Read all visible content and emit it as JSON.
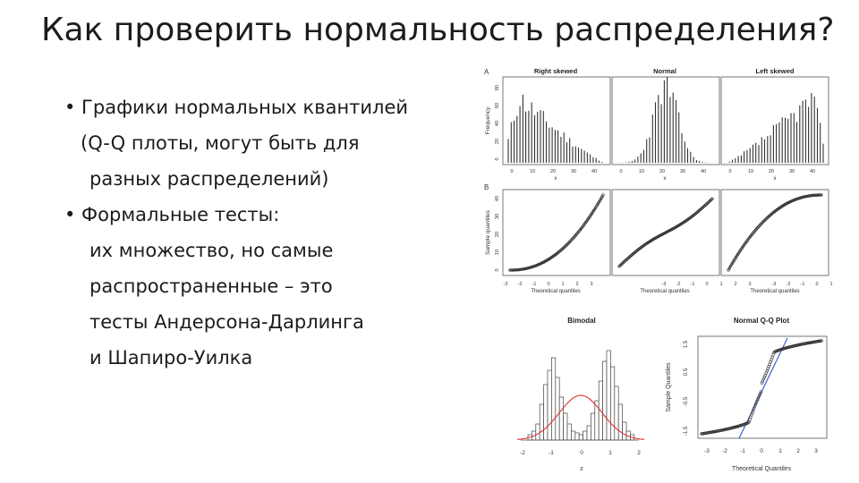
{
  "slide": {
    "title": "Как проверить нормальность распределения?",
    "bullets": [
      {
        "lines": [
          "• Графики нормальных квантилей",
          "(Q-Q плоты, могут быть для",
          "разных распределений)"
        ]
      },
      {
        "lines": [
          "• Формальные тесты:",
          "их множество, но самые",
          "распространенные – это",
          "тесты Андерсона-Дарлинга",
          "и Шапиро-Уилка"
        ]
      }
    ]
  },
  "figure": {
    "panel_a_letter": "A",
    "panel_b_letter": "B",
    "hist_titles": [
      "Right skewed",
      "Normal",
      "Left skewed"
    ],
    "hist_ylabel": "Frequency",
    "hist_xlabel": "x",
    "hist_yticks": [
      "0",
      "20",
      "40",
      "60",
      "80"
    ],
    "hist_xticks": [
      "0",
      "10",
      "20",
      "30",
      "40"
    ],
    "qq_ylabel": "Sample quantiles",
    "qq_xlabel": "Theoretical quantiles",
    "qq_yticks": [
      "0",
      "10",
      "20",
      "30",
      "40"
    ],
    "qq_xticks": [
      "-3",
      "-2",
      "-1",
      "0",
      "1",
      "2",
      "3"
    ],
    "bimodal_title": "Bimodal",
    "bimodal_xlabel": "z",
    "bimodal_xticks": [
      "-2",
      "-1",
      "0",
      "1",
      "2"
    ],
    "normqq_title": "Normal Q-Q Plot",
    "normqq_ylabel": "Sample Quantiles",
    "normqq_xlabel": "Theoretical Quantiles",
    "normqq_yticks": [
      "-1.5",
      "-0.5",
      "0.5",
      "1.5"
    ],
    "normqq_xticks": [
      "-3",
      "-2",
      "-1",
      "0",
      "1",
      "2",
      "3"
    ],
    "colors": {
      "density_curve": "#e03030",
      "reference_line": "#3050d0",
      "ink": "#333333"
    }
  }
}
